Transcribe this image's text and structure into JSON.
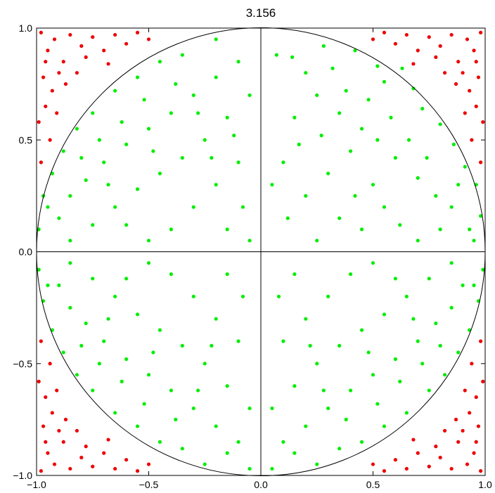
{
  "chart_data": {
    "type": "scatter",
    "title": "3.156",
    "xlabel": "",
    "ylabel": "",
    "xlim": [
      -1.0,
      1.0
    ],
    "ylim": [
      -1.0,
      1.0
    ],
    "x_ticks": [
      "−1.0",
      "−0.5",
      "0.0",
      "0.5",
      "1.0"
    ],
    "y_ticks": [
      "1.0",
      "0.5",
      "0.0",
      "−0.5",
      "−1.0"
    ],
    "grid": false,
    "legend": "none",
    "reference_shapes": {
      "unit_circle": true,
      "axes_lines_at_zero": true
    },
    "colors": {
      "inside": "#00ee00",
      "outside": "#ee0000",
      "frame": "#000000"
    },
    "series": [
      {
        "color": "#00ee00",
        "points": [
          [
            0.28,
            0.92
          ],
          [
            0.14,
            0.87
          ],
          [
            0.07,
            0.88
          ],
          [
            0.42,
            0.9
          ],
          [
            0.52,
            0.83
          ],
          [
            0.63,
            0.82
          ],
          [
            0.55,
            0.76
          ],
          [
            0.68,
            0.73
          ],
          [
            0.72,
            0.64
          ],
          [
            0.8,
            0.57
          ],
          [
            0.86,
            0.48
          ],
          [
            0.91,
            0.38
          ],
          [
            0.96,
            0.3
          ],
          [
            0.98,
            0.16
          ],
          [
            0.93,
            0.1
          ],
          [
            0.85,
            0.2
          ],
          [
            0.78,
            0.25
          ],
          [
            0.7,
            0.33
          ],
          [
            0.6,
            0.42
          ],
          [
            0.45,
            0.55
          ],
          [
            0.35,
            0.62
          ],
          [
            0.25,
            0.7
          ],
          [
            0.15,
            0.6
          ],
          [
            0.1,
            0.4
          ],
          [
            0.05,
            0.3
          ],
          [
            0.12,
            0.15
          ],
          [
            0.2,
            0.25
          ],
          [
            0.3,
            0.35
          ],
          [
            0.4,
            0.45
          ],
          [
            0.5,
            0.3
          ],
          [
            0.55,
            0.2
          ],
          [
            0.62,
            0.12
          ],
          [
            0.7,
            0.05
          ],
          [
            0.8,
            0.1
          ],
          [
            0.35,
            0.15
          ],
          [
            0.25,
            0.05
          ],
          [
            0.45,
            0.1
          ],
          [
            0.58,
            0.6
          ],
          [
            0.66,
            0.5
          ],
          [
            0.38,
            0.72
          ],
          [
            0.2,
            0.8
          ],
          [
            0.32,
            0.82
          ],
          [
            0.48,
            0.68
          ],
          [
            0.74,
            0.42
          ],
          [
            0.88,
            0.3
          ],
          [
            0.95,
            0.05
          ],
          [
            0.17,
            0.48
          ],
          [
            0.27,
            0.52
          ],
          [
            0.42,
            0.25
          ],
          [
            0.52,
            0.5
          ],
          [
            -0.2,
            0.95
          ],
          [
            -0.35,
            0.88
          ],
          [
            -0.45,
            0.85
          ],
          [
            -0.55,
            0.78
          ],
          [
            -0.65,
            0.72
          ],
          [
            -0.75,
            0.62
          ],
          [
            -0.82,
            0.55
          ],
          [
            -0.88,
            0.45
          ],
          [
            -0.93,
            0.35
          ],
          [
            -0.97,
            0.25
          ],
          [
            -0.99,
            0.1
          ],
          [
            -0.9,
            0.15
          ],
          [
            -0.85,
            0.25
          ],
          [
            -0.78,
            0.32
          ],
          [
            -0.7,
            0.4
          ],
          [
            -0.6,
            0.48
          ],
          [
            -0.5,
            0.55
          ],
          [
            -0.4,
            0.62
          ],
          [
            -0.3,
            0.7
          ],
          [
            -0.2,
            0.78
          ],
          [
            -0.1,
            0.85
          ],
          [
            -0.05,
            0.7
          ],
          [
            -0.15,
            0.6
          ],
          [
            -0.25,
            0.5
          ],
          [
            -0.35,
            0.42
          ],
          [
            -0.45,
            0.35
          ],
          [
            -0.55,
            0.28
          ],
          [
            -0.65,
            0.2
          ],
          [
            -0.75,
            0.12
          ],
          [
            -0.85,
            0.05
          ],
          [
            -0.1,
            0.4
          ],
          [
            -0.2,
            0.3
          ],
          [
            -0.3,
            0.2
          ],
          [
            -0.4,
            0.1
          ],
          [
            -0.5,
            0.05
          ],
          [
            -0.6,
            0.12
          ],
          [
            -0.08,
            0.2
          ],
          [
            -0.15,
            0.1
          ],
          [
            -0.28,
            0.62
          ],
          [
            -0.38,
            0.75
          ],
          [
            -0.52,
            0.68
          ],
          [
            -0.62,
            0.58
          ],
          [
            -0.72,
            0.5
          ],
          [
            -0.8,
            0.42
          ],
          [
            -0.95,
            0.2
          ],
          [
            -0.68,
            0.3
          ],
          [
            -0.48,
            0.45
          ],
          [
            -0.22,
            0.42
          ],
          [
            -0.12,
            0.52
          ],
          [
            -0.05,
            0.05
          ],
          [
            0.25,
            -0.95
          ],
          [
            0.15,
            -0.9
          ],
          [
            0.05,
            -0.97
          ],
          [
            0.35,
            -0.88
          ],
          [
            0.45,
            -0.85
          ],
          [
            0.55,
            -0.78
          ],
          [
            0.65,
            -0.72
          ],
          [
            0.75,
            -0.62
          ],
          [
            0.82,
            -0.55
          ],
          [
            0.88,
            -0.45
          ],
          [
            0.93,
            -0.35
          ],
          [
            0.97,
            -0.22
          ],
          [
            0.99,
            -0.08
          ],
          [
            0.9,
            -0.15
          ],
          [
            0.85,
            -0.25
          ],
          [
            0.78,
            -0.32
          ],
          [
            0.7,
            -0.4
          ],
          [
            0.6,
            -0.48
          ],
          [
            0.5,
            -0.55
          ],
          [
            0.4,
            -0.62
          ],
          [
            0.3,
            -0.7
          ],
          [
            0.2,
            -0.78
          ],
          [
            0.1,
            -0.85
          ],
          [
            0.05,
            -0.7
          ],
          [
            0.15,
            -0.6
          ],
          [
            0.25,
            -0.5
          ],
          [
            0.35,
            -0.42
          ],
          [
            0.45,
            -0.35
          ],
          [
            0.55,
            -0.28
          ],
          [
            0.65,
            -0.2
          ],
          [
            0.75,
            -0.12
          ],
          [
            0.85,
            -0.05
          ],
          [
            0.1,
            -0.4
          ],
          [
            0.2,
            -0.3
          ],
          [
            0.3,
            -0.2
          ],
          [
            0.4,
            -0.1
          ],
          [
            0.5,
            -0.05
          ],
          [
            0.6,
            -0.12
          ],
          [
            0.08,
            -0.2
          ],
          [
            0.15,
            -0.1
          ],
          [
            0.28,
            -0.62
          ],
          [
            0.38,
            -0.75
          ],
          [
            0.52,
            -0.68
          ],
          [
            0.62,
            -0.58
          ],
          [
            0.72,
            -0.5
          ],
          [
            0.8,
            -0.42
          ],
          [
            0.95,
            -0.15
          ],
          [
            0.68,
            -0.3
          ],
          [
            0.48,
            -0.45
          ],
          [
            0.22,
            -0.42
          ],
          [
            -0.25,
            -0.95
          ],
          [
            -0.15,
            -0.9
          ],
          [
            -0.05,
            -0.97
          ],
          [
            -0.35,
            -0.88
          ],
          [
            -0.45,
            -0.85
          ],
          [
            -0.55,
            -0.78
          ],
          [
            -0.65,
            -0.72
          ],
          [
            -0.75,
            -0.62
          ],
          [
            -0.82,
            -0.55
          ],
          [
            -0.88,
            -0.45
          ],
          [
            -0.93,
            -0.35
          ],
          [
            -0.97,
            -0.22
          ],
          [
            -0.99,
            -0.08
          ],
          [
            -0.9,
            -0.15
          ],
          [
            -0.85,
            -0.25
          ],
          [
            -0.78,
            -0.32
          ],
          [
            -0.7,
            -0.4
          ],
          [
            -0.6,
            -0.48
          ],
          [
            -0.5,
            -0.55
          ],
          [
            -0.4,
            -0.62
          ],
          [
            -0.3,
            -0.7
          ],
          [
            -0.2,
            -0.78
          ],
          [
            -0.1,
            -0.85
          ],
          [
            -0.05,
            -0.7
          ],
          [
            -0.15,
            -0.6
          ],
          [
            -0.25,
            -0.5
          ],
          [
            -0.35,
            -0.42
          ],
          [
            -0.45,
            -0.35
          ],
          [
            -0.55,
            -0.28
          ],
          [
            -0.65,
            -0.2
          ],
          [
            -0.75,
            -0.12
          ],
          [
            -0.85,
            -0.05
          ],
          [
            -0.1,
            -0.4
          ],
          [
            -0.2,
            -0.3
          ],
          [
            -0.3,
            -0.2
          ],
          [
            -0.4,
            -0.1
          ],
          [
            -0.5,
            -0.05
          ],
          [
            -0.6,
            -0.12
          ],
          [
            -0.08,
            -0.2
          ],
          [
            -0.15,
            -0.1
          ],
          [
            -0.28,
            -0.62
          ],
          [
            -0.38,
            -0.75
          ],
          [
            -0.52,
            -0.68
          ],
          [
            -0.62,
            -0.58
          ],
          [
            -0.72,
            -0.5
          ],
          [
            -0.8,
            -0.42
          ],
          [
            -0.95,
            -0.15
          ],
          [
            -0.68,
            -0.3
          ],
          [
            -0.48,
            -0.45
          ],
          [
            -0.22,
            -0.42
          ]
        ]
      },
      {
        "color": "#ee0000",
        "points": [
          [
            -0.98,
            0.98
          ],
          [
            -0.95,
            0.9
          ],
          [
            -0.92,
            0.95
          ],
          [
            -0.88,
            0.85
          ],
          [
            -0.85,
            0.97
          ],
          [
            -0.8,
            0.92
          ],
          [
            -0.75,
            0.96
          ],
          [
            -0.7,
            0.9
          ],
          [
            -0.65,
            0.97
          ],
          [
            -0.6,
            0.93
          ],
          [
            -0.97,
            0.78
          ],
          [
            -0.93,
            0.72
          ],
          [
            -0.96,
            0.65
          ],
          [
            -0.99,
            0.58
          ],
          [
            -0.94,
            0.5
          ],
          [
            -0.98,
            0.4
          ],
          [
            -0.9,
            0.8
          ],
          [
            -0.82,
            0.8
          ],
          [
            -0.55,
            0.98
          ],
          [
            -0.5,
            0.95
          ],
          [
            -0.96,
            0.85
          ],
          [
            -0.91,
            0.62
          ],
          [
            -0.87,
            0.75
          ],
          [
            -0.78,
            0.87
          ],
          [
            -0.68,
            0.84
          ],
          [
            0.98,
            0.98
          ],
          [
            0.95,
            0.9
          ],
          [
            0.92,
            0.95
          ],
          [
            0.88,
            0.85
          ],
          [
            0.85,
            0.97
          ],
          [
            0.8,
            0.92
          ],
          [
            0.75,
            0.96
          ],
          [
            0.7,
            0.9
          ],
          [
            0.65,
            0.97
          ],
          [
            0.6,
            0.93
          ],
          [
            0.97,
            0.78
          ],
          [
            0.93,
            0.72
          ],
          [
            0.96,
            0.65
          ],
          [
            0.99,
            0.58
          ],
          [
            0.94,
            0.5
          ],
          [
            0.98,
            0.4
          ],
          [
            0.9,
            0.8
          ],
          [
            0.82,
            0.8
          ],
          [
            0.55,
            0.98
          ],
          [
            0.5,
            0.95
          ],
          [
            0.96,
            0.85
          ],
          [
            0.91,
            0.62
          ],
          [
            0.87,
            0.75
          ],
          [
            0.78,
            0.87
          ],
          [
            0.68,
            0.84
          ],
          [
            -0.98,
            -0.98
          ],
          [
            -0.95,
            -0.9
          ],
          [
            -0.92,
            -0.95
          ],
          [
            -0.88,
            -0.85
          ],
          [
            -0.85,
            -0.97
          ],
          [
            -0.8,
            -0.92
          ],
          [
            -0.75,
            -0.96
          ],
          [
            -0.7,
            -0.9
          ],
          [
            -0.65,
            -0.97
          ],
          [
            -0.6,
            -0.93
          ],
          [
            -0.97,
            -0.78
          ],
          [
            -0.93,
            -0.72
          ],
          [
            -0.96,
            -0.65
          ],
          [
            -0.99,
            -0.58
          ],
          [
            -0.94,
            -0.5
          ],
          [
            -0.98,
            -0.4
          ],
          [
            -0.9,
            -0.8
          ],
          [
            -0.82,
            -0.8
          ],
          [
            -0.55,
            -0.98
          ],
          [
            -0.5,
            -0.95
          ],
          [
            -0.96,
            -0.85
          ],
          [
            -0.91,
            -0.62
          ],
          [
            -0.87,
            -0.75
          ],
          [
            -0.78,
            -0.87
          ],
          [
            -0.68,
            -0.84
          ],
          [
            0.98,
            -0.98
          ],
          [
            0.95,
            -0.9
          ],
          [
            0.92,
            -0.95
          ],
          [
            0.88,
            -0.85
          ],
          [
            0.85,
            -0.97
          ],
          [
            0.8,
            -0.92
          ],
          [
            0.75,
            -0.96
          ],
          [
            0.7,
            -0.9
          ],
          [
            0.65,
            -0.97
          ],
          [
            0.6,
            -0.93
          ],
          [
            0.97,
            -0.78
          ],
          [
            0.93,
            -0.72
          ],
          [
            0.96,
            -0.65
          ],
          [
            0.99,
            -0.58
          ],
          [
            0.94,
            -0.5
          ],
          [
            0.98,
            -0.4
          ],
          [
            0.9,
            -0.8
          ],
          [
            0.82,
            -0.8
          ],
          [
            0.55,
            -0.98
          ],
          [
            0.5,
            -0.95
          ],
          [
            0.96,
            -0.85
          ],
          [
            0.91,
            -0.62
          ],
          [
            0.87,
            -0.75
          ],
          [
            0.78,
            -0.87
          ],
          [
            0.68,
            -0.84
          ]
        ]
      }
    ]
  }
}
